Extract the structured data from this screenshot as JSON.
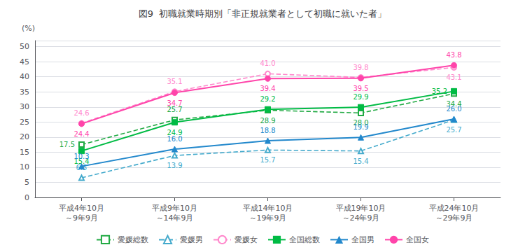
{
  "chart_data": {
    "type": "line",
    "title": "図9  初職就業時期別「非正規就業者として初職に就いた者」",
    "ylabel": "(%)",
    "categories": [
      "平成4年10月\n～9年9月",
      "平成9年10月\n～14年9月",
      "平成14年10月\n～19年9月",
      "平成19年10月\n～24年9月",
      "平成24年10月\n～29年9月"
    ],
    "ylim": [
      0,
      52
    ],
    "yticks": [
      0,
      5,
      10,
      15,
      20,
      25,
      30,
      35,
      40,
      45,
      50
    ],
    "grid": true,
    "legend": "bottom",
    "data_labels": true,
    "series": [
      {
        "name": "愛媛総数",
        "color": "#22aa44",
        "line_style": "dashed",
        "marker": "square-open",
        "values": [
          17.5,
          25.7,
          28.9,
          28.0,
          34.4
        ],
        "value_labels": [
          "17.5",
          "25.7",
          "28.9",
          "28.0",
          "34.4"
        ]
      },
      {
        "name": "愛媛男",
        "color": "#44aacc",
        "line_style": "dashed",
        "marker": "triangle-open",
        "values": [
          6.5,
          13.9,
          15.7,
          15.4,
          25.7
        ],
        "value_labels": [
          "6.5",
          "13.9",
          "15.7",
          "15.4",
          "25.7"
        ]
      },
      {
        "name": "愛媛女",
        "color": "#ff88cc",
        "line_style": "dashed",
        "marker": "circle-open",
        "values": [
          24.6,
          35.1,
          41.0,
          39.8,
          43.1
        ],
        "value_labels": [
          "24.6",
          "35.1",
          "41.0",
          "39.8",
          "43.1"
        ]
      },
      {
        "name": "全国総数",
        "color": "#00bb44",
        "line_style": "solid",
        "marker": "square",
        "values": [
          15.4,
          24.9,
          29.2,
          29.9,
          35.2
        ],
        "value_labels": [
          "15.4",
          "24.9",
          "29.2",
          "29.9",
          "35.2"
        ]
      },
      {
        "name": "全国男",
        "color": "#2288cc",
        "line_style": "solid",
        "marker": "triangle",
        "values": [
          10.3,
          16.0,
          18.8,
          19.9,
          26.0
        ],
        "value_labels": [
          "10.3",
          "16.0",
          "18.8",
          "19.9",
          "26.0"
        ]
      },
      {
        "name": "全国女",
        "color": "#ff44aa",
        "line_style": "solid",
        "marker": "circle",
        "values": [
          24.4,
          34.7,
          39.4,
          39.5,
          43.8
        ],
        "value_labels": [
          "24.4",
          "34.7",
          "39.4",
          "39.5",
          "43.8"
        ]
      }
    ]
  }
}
